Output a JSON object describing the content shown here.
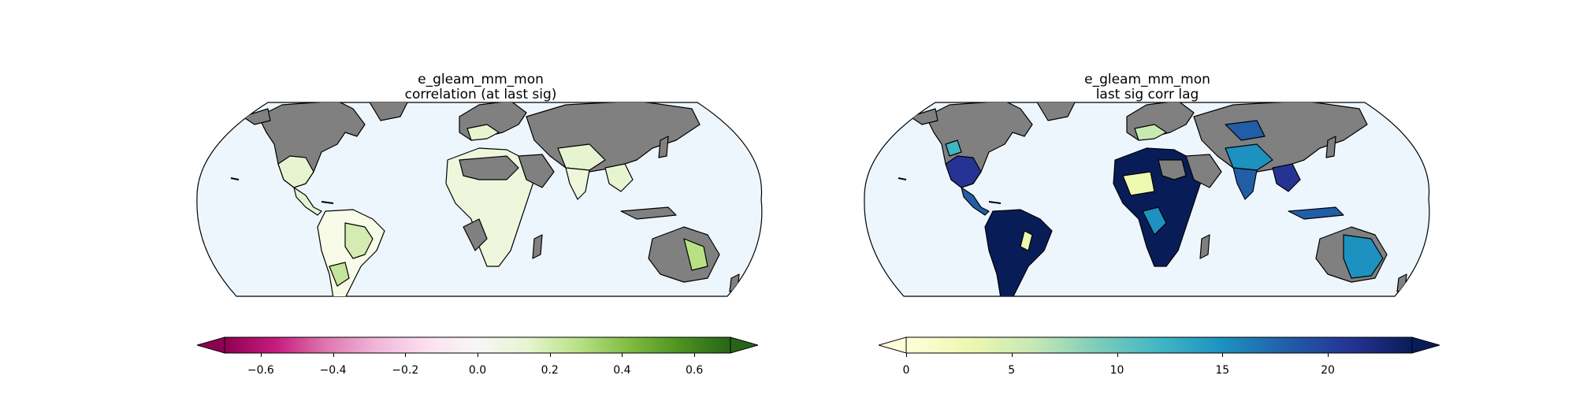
{
  "panels": [
    {
      "title_line1": "e_gleam_mm_mon",
      "title_line2": "correlation (at last sig)",
      "colorbar": {
        "ticks": [
          "−0.6",
          "−0.4",
          "−0.2",
          "0.0",
          "0.2",
          "0.4",
          "0.6"
        ],
        "tick_values": [
          -0.6,
          -0.4,
          -0.2,
          0.0,
          0.2,
          0.4,
          0.6
        ],
        "range": [
          -0.7,
          0.7
        ],
        "extend": "both",
        "colormap": "PiYG",
        "colors": [
          "#8e0152",
          "#c51b7d",
          "#de77ae",
          "#f1b6da",
          "#fde0ef",
          "#f7f7f7",
          "#e6f5d0",
          "#b8e186",
          "#7fbc41",
          "#4d9221",
          "#276419"
        ]
      }
    },
    {
      "title_line1": "e_gleam_mm_mon",
      "title_line2": "last sig corr lag",
      "colorbar": {
        "ticks": [
          "0",
          "5",
          "10",
          "15",
          "20"
        ],
        "tick_values": [
          0,
          5,
          10,
          15,
          20
        ],
        "range": [
          0,
          24
        ],
        "extend": "both",
        "colormap": "YlGnBu",
        "colors": [
          "#ffffd9",
          "#edf8b1",
          "#c7e9b4",
          "#7fcdbb",
          "#41b6c4",
          "#1d91c0",
          "#225ea8",
          "#253494",
          "#081d58"
        ]
      }
    }
  ],
  "map_colors": {
    "ocean": "#eef6fd",
    "land_masked": "#808080",
    "border": "#000000"
  }
}
